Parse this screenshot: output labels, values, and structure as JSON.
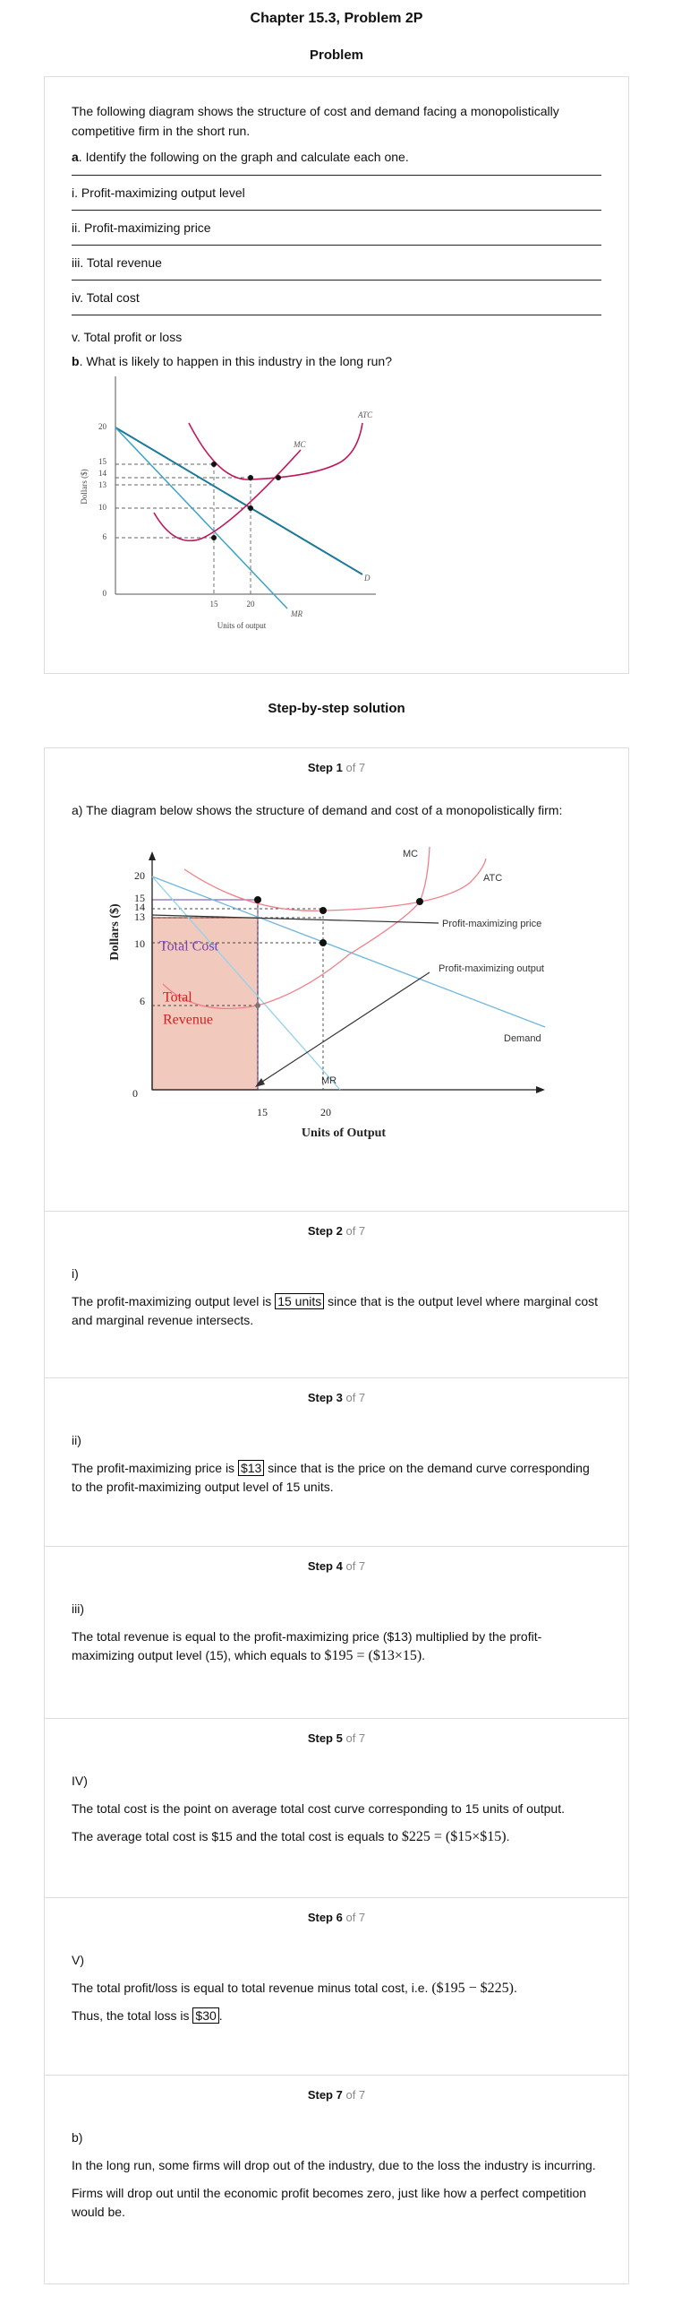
{
  "header": {
    "title": "Chapter 15.3, Problem 2P",
    "subtitle": "Problem"
  },
  "problem": {
    "intro": "The following diagram shows the structure of cost and demand facing a monopolistically competitive firm in the short run.",
    "part_a": {
      "label": "a",
      "text": ". Identify the following on the graph and calculate each one."
    },
    "items": [
      "i. Profit-maximizing output level",
      "ii. Profit-maximizing price",
      "iii. Total revenue",
      "iv. Total cost",
      "v. Total profit or loss"
    ],
    "part_b": {
      "label": "b",
      "text": ". What is likely to happen in this industry in the long run?"
    },
    "figure": {
      "y_axis_label": "Dollars ($)",
      "x_axis_label": "Units of output",
      "y_ticks": [
        20,
        15,
        14,
        13,
        10,
        6,
        0
      ],
      "x_ticks": [
        15,
        20
      ],
      "curves": {
        "atc": "ATC",
        "mc": "MC",
        "demand": "D",
        "mr": "MR"
      }
    }
  },
  "solution_title": "Step-by-step solution",
  "steps": [
    {
      "label": "Step 1",
      "of": "of 7",
      "text": "a) The diagram below shows the structure of demand and cost of a monopolistically firm:",
      "figure": {
        "y_axis_label": "Dollars ($)",
        "x_axis_label": "Units of Output",
        "y_ticks": [
          20,
          15,
          14,
          13,
          10,
          6,
          0
        ],
        "x_ticks": [
          15,
          20
        ],
        "mc": "MC",
        "atc": "ATC",
        "price_note": "Profit-maximizing price",
        "output_note": "Profit-maximizing output",
        "demand": "Demand",
        "mr": "MR",
        "total_cost": "Total Cost",
        "total_revenue": [
          "Total",
          "Revenue"
        ]
      }
    },
    {
      "label": "Step 2",
      "of": "of 7",
      "part": "i)",
      "paragraphs": [
        {
          "before": "The profit-maximizing output level is ",
          "highlight": "15 units",
          "after": " since that is the output level where marginal cost and marginal revenue intersects."
        }
      ]
    },
    {
      "label": "Step 3",
      "of": "of 7",
      "part": "ii)",
      "paragraphs": [
        {
          "before": "The profit-maximizing price is ",
          "highlight": "$13",
          "after": " since that is the price on the demand curve corresponding to the profit-maximizing output level of 15 units."
        }
      ]
    },
    {
      "label": "Step 4",
      "of": "of 7",
      "part": "iii)",
      "paragraphs": [
        {
          "before": "The total revenue is equal to the profit-maximizing price ($13) multiplied by the profit-maximizing output level (15), which equals to ",
          "math": "$195 = ($13×15)",
          "after": "."
        }
      ]
    },
    {
      "label": "Step 5",
      "of": "of 7",
      "part": "IV)",
      "paragraphs": [
        {
          "before": "The total cost is the point on average total cost curve corresponding to 15 units of output."
        },
        {
          "before": "The average total cost is $15 and the total cost is equals to ",
          "math": "$225 = ($15×$15)",
          "after": "."
        }
      ]
    },
    {
      "label": "Step 6",
      "of": "of 7",
      "part": "V)",
      "paragraphs": [
        {
          "before": "The total profit/loss is equal to total revenue minus total cost, i.e. ",
          "math": "($195 − $225)",
          "after": "."
        },
        {
          "before": "Thus, the total loss is ",
          "highlight": "$30",
          "after": "."
        }
      ]
    },
    {
      "label": "Step 7",
      "of": "of 7",
      "part": "b)",
      "paragraphs": [
        {
          "before": "In the long run, some firms will drop out of the industry, due to the loss the industry is incurring."
        },
        {
          "before": "Firms will drop out until the economic profit becomes zero, just like how a perfect competition would be."
        }
      ]
    }
  ]
}
